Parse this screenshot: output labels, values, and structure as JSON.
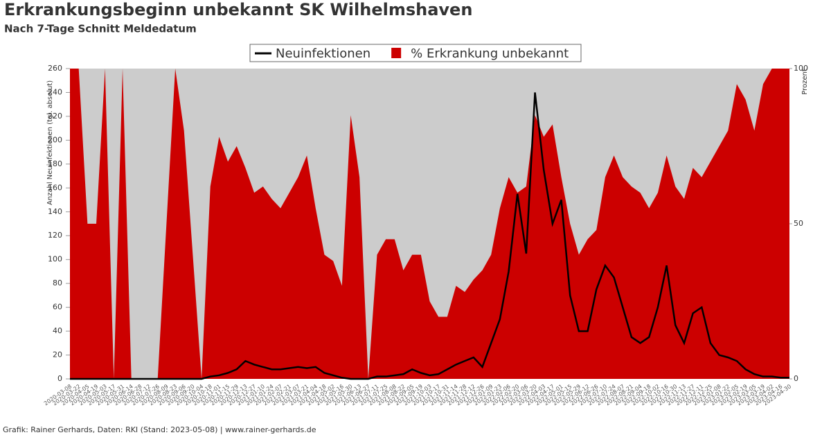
{
  "chart_data": {
    "type": "line-area",
    "title": "Erkrankungsbeginn unbekannt SK Wilhelmshaven",
    "subtitle": "Nach 7-Tage Schnitt Meldedatum",
    "y_label": "Anzahl Neuinfektionen (tgl. absolut)",
    "y2_label": "Prozent",
    "footer": "Grafik: Rainer Gerhards, Daten: RKI (Stand: 2023-05-08) | www.rainer-gerhards.de",
    "legend": "top",
    "categories": [
      "2020-03-08",
      "2020-03-22",
      "2020-04-05",
      "2020-04-19",
      "2020-05-03",
      "2020-05-17",
      "2020-05-31",
      "2020-06-14",
      "2020-06-28",
      "2020-07-12",
      "2020-07-26",
      "2020-08-09",
      "2020-08-23",
      "2020-09-06",
      "2020-09-20",
      "2020-10-04",
      "2020-10-18",
      "2020-11-01",
      "2020-11-15",
      "2020-11-29",
      "2020-12-13",
      "2020-12-27",
      "2021-01-10",
      "2021-01-24",
      "2021-02-07",
      "2021-02-21",
      "2021-03-07",
      "2021-03-21",
      "2021-04-04",
      "2021-04-18",
      "2021-05-02",
      "2021-05-16",
      "2021-05-30",
      "2021-06-13",
      "2021-06-27",
      "2021-07-11",
      "2021-07-25",
      "2021-08-08",
      "2021-08-22",
      "2021-09-05",
      "2021-09-19",
      "2021-10-03",
      "2021-10-17",
      "2021-10-31",
      "2021-11-14",
      "2021-11-28",
      "2021-12-12",
      "2021-12-26",
      "2022-01-09",
      "2022-01-23",
      "2022-02-06",
      "2022-02-20",
      "2022-03-06",
      "2022-03-20",
      "2022-04-03",
      "2022-04-17",
      "2022-05-01",
      "2022-05-15",
      "2022-05-29",
      "2022-06-12",
      "2022-06-26",
      "2022-07-10",
      "2022-07-24",
      "2022-08-07",
      "2022-08-21",
      "2022-09-04",
      "2022-09-18",
      "2022-10-02",
      "2022-10-16",
      "2022-10-30",
      "2022-11-13",
      "2022-11-27",
      "2022-12-11",
      "2022-12-25",
      "2023-01-08",
      "2023-01-22",
      "2023-02-05",
      "2023-02-19",
      "2023-03-05",
      "2023-03-19",
      "2023-04-02",
      "2023-04-16",
      "2023-04-30"
    ],
    "series": [
      {
        "name": "% Erkrankung unbekannt",
        "color": "#cc0000",
        "axis": "y2",
        "kind": "area",
        "values": [
          100,
          100,
          50,
          50,
          100,
          0,
          100,
          0,
          0,
          0,
          0,
          50,
          100,
          80,
          40,
          0,
          62,
          78,
          70,
          75,
          68,
          60,
          62,
          58,
          55,
          60,
          65,
          72,
          55,
          40,
          38,
          30,
          85,
          65,
          0,
          40,
          45,
          45,
          35,
          40,
          40,
          25,
          20,
          20,
          30,
          28,
          32,
          35,
          40,
          55,
          65,
          60,
          62,
          85,
          78,
          82,
          65,
          50,
          40,
          45,
          48,
          65,
          72,
          65,
          62,
          60,
          55,
          60,
          72,
          62,
          58,
          68,
          65,
          70,
          75,
          80,
          95,
          90,
          80,
          95,
          100,
          100,
          100
        ]
      },
      {
        "name": "Neuinfektionen",
        "color": "#000000",
        "axis": "y",
        "kind": "line",
        "values": [
          0,
          0,
          0,
          0,
          0,
          0,
          0,
          0,
          0,
          0,
          0,
          0,
          0,
          0,
          0,
          0,
          2,
          3,
          5,
          8,
          15,
          12,
          10,
          8,
          8,
          9,
          10,
          9,
          10,
          5,
          3,
          1,
          0,
          0,
          0,
          2,
          2,
          3,
          4,
          8,
          5,
          3,
          4,
          8,
          12,
          15,
          18,
          10,
          30,
          50,
          90,
          155,
          105,
          240,
          175,
          130,
          150,
          70,
          40,
          40,
          75,
          95,
          85,
          60,
          35,
          30,
          35,
          60,
          95,
          45,
          30,
          55,
          60,
          30,
          20,
          18,
          15,
          8,
          4,
          2,
          2,
          1,
          1
        ]
      }
    ],
    "ylim": [
      0,
      260
    ],
    "yticks": [
      0,
      20,
      40,
      60,
      80,
      100,
      120,
      140,
      160,
      180,
      200,
      220,
      240,
      260
    ],
    "y2lim": [
      0,
      100
    ],
    "y2ticks": [
      0,
      50,
      100
    ],
    "plot_background": "#cccccc"
  }
}
